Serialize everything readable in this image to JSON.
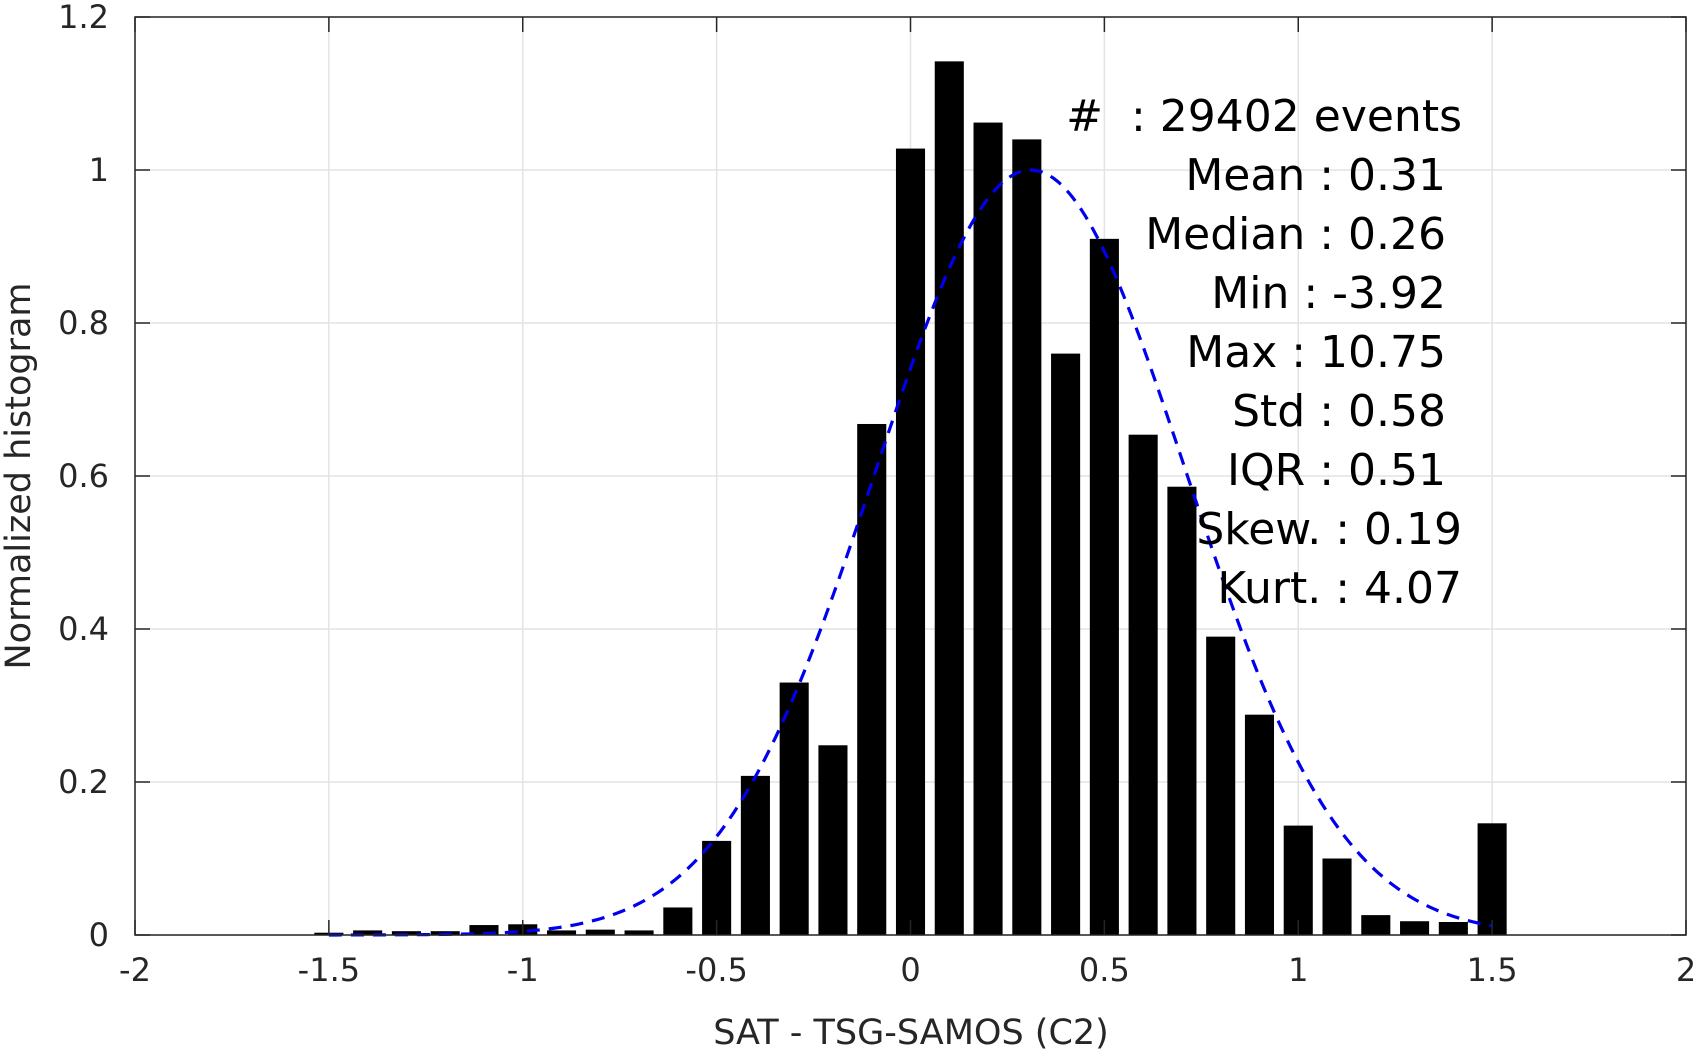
{
  "chart_data": {
    "type": "bar",
    "xlabel": "SAT - TSG-SAMOS (C2)",
    "ylabel": "Normalized histogram",
    "xlim": [
      -2,
      2
    ],
    "ylim": [
      0,
      1.2
    ],
    "xticks": [
      -2,
      -1.5,
      -1,
      -0.5,
      0,
      0.5,
      1,
      1.5,
      2
    ],
    "xtick_labels": [
      "-2",
      "-1.5",
      "-1",
      "-0.5",
      "0",
      "0.5",
      "1",
      "1.5",
      "2"
    ],
    "yticks": [
      0,
      0.2,
      0.4,
      0.6,
      0.8,
      1,
      1.2
    ],
    "ytick_labels": [
      "0",
      "0.2",
      "0.4",
      "0.6",
      "0.8",
      "1",
      "1.2"
    ],
    "grid": true,
    "bar_width": 0.075,
    "bar_color": "#000000",
    "bars": {
      "x": [
        -1.5,
        -1.4,
        -1.3,
        -1.2,
        -1.1,
        -1.0,
        -0.9,
        -0.8,
        -0.7,
        -0.6,
        -0.5,
        -0.4,
        -0.3,
        -0.2,
        -0.1,
        0.0,
        0.1,
        0.2,
        0.3,
        0.4,
        0.5,
        0.6,
        0.7,
        0.8,
        0.9,
        1.0,
        1.1,
        1.2,
        1.3,
        1.4,
        1.5
      ],
      "values": [
        0.003,
        0.006,
        0.005,
        0.005,
        0.013,
        0.014,
        0.006,
        0.007,
        0.006,
        0.036,
        0.123,
        0.208,
        0.33,
        0.248,
        0.668,
        1.028,
        1.142,
        1.062,
        1.04,
        0.76,
        0.91,
        0.654,
        0.586,
        0.39,
        0.288,
        0.143,
        0.1,
        0.026,
        0.018,
        0.017,
        0.146
      ]
    },
    "series": [
      {
        "kind": "normal-fit",
        "style": "dashed",
        "color": "#0000ee",
        "mean": 0.31,
        "std": 0.4,
        "peak": 1.0,
        "x_range": [
          -1.5,
          1.5
        ]
      }
    ],
    "stats_lines": [
      "#  : 29402 events",
      "Mean : 0.31",
      "Median : 0.26",
      "Min : -3.92",
      "Max : 10.75",
      "Std : 0.58",
      "IQR : 0.51",
      "Skew. : 0.19",
      "Kurt. : 4.07"
    ]
  }
}
